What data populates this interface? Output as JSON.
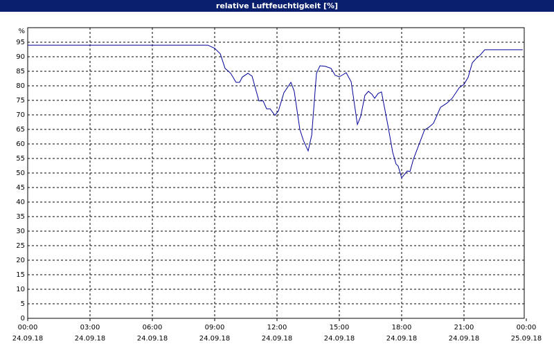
{
  "chart_data": {
    "type": "line",
    "title": "relative Luftfeuchtigkeit [%]",
    "y_label": "%",
    "x": [
      0,
      8.67,
      9,
      9.27,
      9.5,
      9.77,
      10.03,
      10.2,
      10.33,
      10.6,
      10.8,
      11.13,
      11.33,
      11.5,
      11.67,
      11.9,
      12.07,
      12.33,
      12.67,
      12.83,
      13.1,
      13.27,
      13.5,
      13.67,
      13.9,
      14.07,
      14.33,
      14.6,
      14.8,
      15,
      15.17,
      15.33,
      15.57,
      15.87,
      16.03,
      16.23,
      16.4,
      16.57,
      16.7,
      16.87,
      17.03,
      17.33,
      17.57,
      17.73,
      17.83,
      18,
      18.27,
      18.4,
      18.57,
      19.1,
      19.3,
      19.53,
      19.87,
      20.17,
      20.43,
      20.77,
      21,
      21.2,
      21.4,
      21.6,
      21.77,
      22,
      23.83
    ],
    "values": [
      94,
      94,
      92.9,
      91,
      86,
      84.3,
      81.2,
      81.2,
      83,
      84.3,
      83.3,
      74.8,
      74.8,
      72.1,
      72.1,
      69.8,
      71.4,
      77.6,
      81.2,
      78.1,
      65,
      61.2,
      57.6,
      63,
      84.3,
      86.9,
      86.7,
      86,
      83.6,
      83.1,
      83.8,
      84.5,
      81.4,
      66.7,
      69.5,
      76.7,
      78.1,
      77.1,
      75.7,
      77.4,
      77.9,
      66.7,
      57.1,
      53.1,
      52.4,
      48.3,
      50.7,
      50.5,
      54.8,
      64.8,
      65.7,
      67.1,
      72.6,
      74,
      75.7,
      79.3,
      80.5,
      82.9,
      87.9,
      89.5,
      90.5,
      92.4,
      92.4
    ],
    "color": "#000099",
    "xlim": [
      0,
      24
    ],
    "xticks": [
      {
        "value": 0,
        "label": "00:00"
      },
      {
        "value": 3,
        "label": "03:00"
      },
      {
        "value": 6,
        "label": "06:00"
      },
      {
        "value": 9,
        "label": "09:00"
      },
      {
        "value": 12,
        "label": "12:00"
      },
      {
        "value": 15,
        "label": "15:00"
      },
      {
        "value": 18,
        "label": "18:00"
      },
      {
        "value": 21,
        "label": "21:00"
      },
      {
        "value": 24,
        "label": "00:00"
      }
    ],
    "xtick_dates": [
      "24.09.18",
      "24.09.18",
      "24.09.18",
      "24.09.18",
      "24.09.18",
      "24.09.18",
      "24.09.18",
      "24.09.18",
      "25.09.18"
    ],
    "ylim": [
      0,
      100
    ],
    "yticks": [
      0,
      5,
      10,
      15,
      20,
      25,
      30,
      35,
      40,
      45,
      50,
      55,
      60,
      65,
      70,
      75,
      80,
      85,
      90,
      95
    ],
    "grid": true
  }
}
